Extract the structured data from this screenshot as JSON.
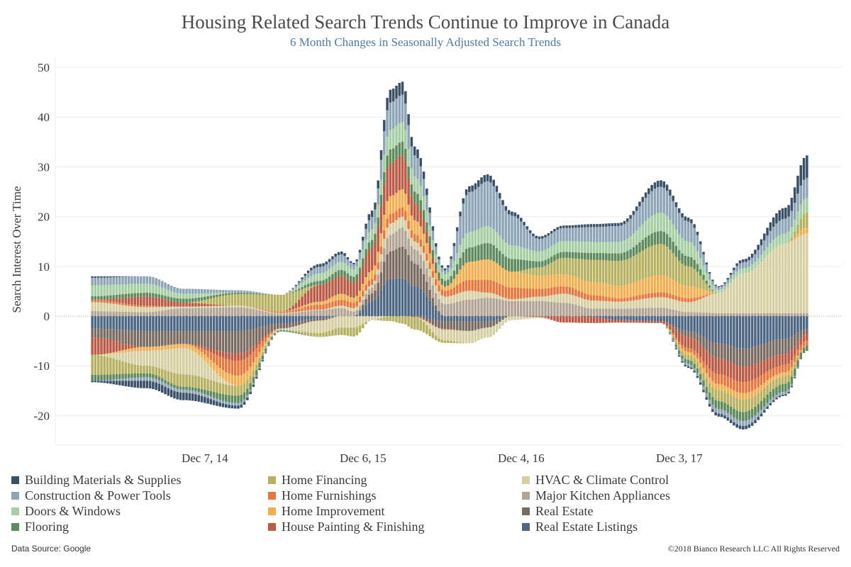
{
  "header": {
    "title": "Housing Related Search Trends Continue to Improve in Canada",
    "subtitle": "6 Month Changes in Seasonally Adjusted Search Trends"
  },
  "footer": {
    "source": "Data Source: Google",
    "copyright": "©2018 Bianco Research LLC  All Rights Reserved"
  },
  "chart_data": {
    "type": "bar",
    "stacked": true,
    "diverging": true,
    "ylabel": "Search Interest Over Time",
    "xlabel": "",
    "ylim": [
      -25,
      52
    ],
    "yticks": [
      -20,
      -10,
      0,
      10,
      20,
      30,
      40,
      50
    ],
    "x_tick_labels": [
      "Dec 7, 14",
      "Dec 6, 15",
      "Dec 4, 16",
      "Dec 3, 17"
    ],
    "x_tick_week_index": [
      37,
      89,
      141,
      193
    ],
    "weeks": 236,
    "grid": "horizontal",
    "legend_position": "bottom",
    "keyframe_weeks": [
      0,
      18,
      30,
      48,
      62,
      75,
      82,
      86,
      92,
      98,
      102,
      106,
      116,
      124,
      130,
      138,
      147,
      155,
      165,
      173,
      187,
      196,
      206,
      214,
      228,
      235
    ],
    "series": [
      {
        "name": "Real Estate Listings",
        "color": "#4d6785",
        "values": [
          0,
          0,
          0,
          0,
          0,
          0,
          0,
          0,
          3,
          7.5,
          7.6,
          6,
          0,
          0,
          0,
          0,
          0,
          0,
          0,
          0,
          0,
          0,
          0,
          0,
          0,
          0
        ]
      },
      {
        "name": "Real Estate",
        "color": "#7a6b62",
        "values": [
          0,
          0,
          0,
          0,
          0,
          0,
          0,
          0,
          1.6,
          5.5,
          6.4,
          4.6,
          0,
          0,
          0,
          0,
          0,
          0,
          0,
          0,
          0,
          0,
          0,
          0,
          0,
          0
        ]
      },
      {
        "name": "Major Kitchen Appliances",
        "color": "#b2a495",
        "values": [
          1,
          0.8,
          1.6,
          1.8,
          0.5,
          1.2,
          1.6,
          0.9,
          1.1,
          3.3,
          3.8,
          2.8,
          2.4,
          3.3,
          3.7,
          3,
          3,
          2.7,
          1.5,
          1.5,
          1.7,
          0.8,
          0.6,
          0.6,
          0.6,
          0.6
        ]
      },
      {
        "name": "HVAC & Climate Control",
        "color": "#d6cfa3",
        "values": [
          1.8,
          1,
          0.3,
          0.3,
          0.1,
          0.1,
          0.5,
          0.7,
          0.6,
          2.3,
          2.2,
          1.6,
          1.5,
          1.8,
          1,
          0.4,
          0.9,
          1.8,
          1.6,
          1.4,
          2.1,
          2,
          4,
          8,
          14,
          16
        ]
      },
      {
        "name": "Home Furnishings",
        "color": "#e8773d",
        "values": [
          0.5,
          0.3,
          0,
          0,
          0.3,
          1,
          1.2,
          1.1,
          1.2,
          1.9,
          1.9,
          1.5,
          1.2,
          2.2,
          2.6,
          2.3,
          1.6,
          1.5,
          1.1,
          0.7,
          1,
          0.8,
          0,
          0,
          0,
          0
        ]
      },
      {
        "name": "Home Improvement",
        "color": "#f4ae4e",
        "values": [
          0,
          0,
          0,
          0,
          0,
          0.6,
          1.2,
          1,
          1.7,
          3.6,
          3.6,
          2.8,
          0.8,
          3.6,
          4.1,
          3.2,
          2.6,
          2.4,
          2.6,
          2.5,
          3.4,
          2.4,
          0,
          0,
          0,
          1.2
        ]
      },
      {
        "name": "House Painting & Finishing",
        "color": "#bc5a44",
        "values": [
          0,
          1.8,
          0.8,
          0,
          0,
          3.4,
          3.5,
          3,
          4.6,
          6.6,
          6.8,
          3.4,
          0,
          0,
          0,
          0,
          0,
          0,
          0,
          0,
          0,
          0,
          0,
          0,
          0,
          0
        ]
      },
      {
        "name": "Home Financing",
        "color": "#b5b160",
        "values": [
          0,
          0,
          0,
          2.3,
          3.4,
          0,
          0,
          0,
          0,
          0,
          0,
          0,
          0,
          0,
          0,
          0,
          1.7,
          3.3,
          4.5,
          5,
          6.3,
          4,
          0,
          0,
          0,
          3
        ]
      },
      {
        "name": "Flooring",
        "color": "#5e8a5d",
        "values": [
          0.7,
          0.8,
          0.8,
          0.3,
          0,
          0.8,
          1.3,
          1.2,
          1.5,
          2.8,
          2.8,
          2.3,
          1.2,
          2.9,
          3.3,
          2.6,
          1.2,
          1.2,
          1.4,
          1.5,
          2.6,
          2,
          0,
          0,
          0,
          0
        ]
      },
      {
        "name": "Doors & Windows",
        "color": "#a5cfa2",
        "values": [
          2.2,
          1.8,
          1,
          0,
          0,
          1.5,
          1.6,
          1.5,
          2.1,
          3.9,
          3.9,
          3.1,
          1.3,
          3.1,
          3.4,
          2.7,
          2,
          2.2,
          2.2,
          2.3,
          3.7,
          3,
          0.7,
          1,
          2,
          3
        ]
      },
      {
        "name": "Construction & Power Tools",
        "color": "#8ea4b7",
        "values": [
          1.5,
          1.5,
          1,
          0.5,
          0,
          1.3,
          1.5,
          1,
          2.5,
          5.5,
          5.5,
          4.2,
          0.8,
          8,
          9,
          6,
          2.5,
          2.6,
          3,
          3.2,
          5.2,
          4,
          0.5,
          1.2,
          3,
          4
        ]
      },
      {
        "name": "Building Materials & Supplies",
        "color": "#3a5068",
        "values": [
          0.3,
          0,
          0,
          0,
          0,
          0.6,
          0.6,
          0.3,
          1.3,
          2.6,
          2.6,
          1.8,
          0.4,
          1.2,
          1.4,
          0.8,
          0.5,
          0.5,
          0.6,
          0.6,
          1.3,
          0.8,
          0.2,
          0.6,
          2.2,
          4.5
        ]
      }
    ],
    "negative_series": [
      {
        "name": "Real Estate Listings",
        "color": "#4d6785",
        "values": [
          -2.5,
          -3,
          -3,
          -3,
          -1.5,
          -0.4,
          0,
          0,
          0,
          0,
          0,
          0,
          -1,
          -1,
          -1,
          0,
          0,
          0,
          -0.2,
          -0.8,
          -1,
          -3,
          -5.5,
          -6.5,
          -4.6,
          -2.6
        ]
      },
      {
        "name": "Real Estate",
        "color": "#7a6b62",
        "values": [
          -1.8,
          -3.2,
          -2.6,
          -4.5,
          -1,
          -0.5,
          0,
          0,
          0,
          0,
          0,
          0,
          -1.5,
          -2,
          -1.3,
          0,
          0,
          0,
          0,
          0,
          0,
          -1.2,
          -3,
          -3.6,
          -3,
          -1
        ]
      },
      {
        "name": "House Painting & Finishing",
        "color": "#bc5a44",
        "values": [
          -3.5,
          0,
          0,
          -1.5,
          0,
          0,
          0,
          0,
          0,
          0,
          0,
          -0.2,
          -0.2,
          0,
          0,
          0,
          -0.2,
          -1.3,
          -1.2,
          -0.5,
          -0.4,
          -2.2,
          -3.2,
          -3.2,
          -2.2,
          -1.3
        ]
      },
      {
        "name": "Home Furnishings",
        "color": "#e8773d",
        "values": [
          0,
          0,
          0,
          -3,
          0,
          0,
          0,
          0,
          0,
          0,
          0,
          0,
          0,
          0,
          0,
          0,
          0,
          0,
          0,
          0,
          0,
          -0.8,
          -2,
          -2.2,
          -1.5,
          -1
        ]
      },
      {
        "name": "Home Improvement",
        "color": "#f4ae4e",
        "values": [
          0,
          -0.8,
          -0.9,
          -2,
          0,
          0,
          0,
          0,
          0,
          0,
          0,
          0,
          0,
          0,
          0,
          0,
          0,
          0,
          0,
          0,
          0,
          -0.6,
          -1.2,
          -1.3,
          -0.8,
          0
        ]
      },
      {
        "name": "HVAC & Climate Control",
        "color": "#d6cfa3",
        "values": [
          0,
          -3,
          -5.2,
          0,
          -0.3,
          -2.5,
          -2.3,
          -2.3,
          -0.8,
          0,
          0,
          0,
          -2.2,
          -2.5,
          -2,
          -0.8,
          -0.2,
          0,
          0,
          0,
          0,
          0,
          0,
          0,
          0,
          0
        ]
      },
      {
        "name": "Home Financing",
        "color": "#b5b160",
        "values": [
          -4,
          -1.5,
          -2.5,
          -2,
          0,
          -0.8,
          -1.5,
          -1.8,
          0,
          -1,
          -1.5,
          -2.5,
          -0.5,
          0,
          0,
          0,
          0,
          0,
          0,
          0,
          0,
          -1,
          -2.2,
          -2.5,
          -1.5,
          0
        ]
      },
      {
        "name": "Flooring",
        "color": "#5e8a5d",
        "values": [
          -1.2,
          -0.8,
          -0.6,
          -1.5,
          -0.3,
          0,
          0,
          0,
          0,
          0,
          0,
          0,
          0,
          0,
          0,
          0,
          0,
          0,
          0,
          0,
          0,
          -0.8,
          -1.6,
          -1.8,
          -1.6,
          -1.1
        ]
      },
      {
        "name": "Construction & Power Tools",
        "color": "#8ea4b7",
        "values": [
          0,
          -0.7,
          -0.6,
          -0.5,
          0,
          0,
          0,
          0,
          0,
          0,
          0,
          0,
          0,
          0,
          0,
          0,
          0,
          0,
          0,
          0,
          0,
          -0.5,
          -0.9,
          -1,
          -0.5,
          0
        ]
      },
      {
        "name": "Building Materials & Supplies",
        "color": "#3a5068",
        "values": [
          -0.3,
          -1.5,
          -1.5,
          -0.6,
          0,
          0,
          0,
          0,
          0,
          0,
          0,
          0,
          0,
          0,
          0,
          0,
          0,
          0,
          0,
          0,
          0,
          -0.3,
          -0.6,
          -0.7,
          -0.3,
          0
        ]
      }
    ],
    "legend": [
      {
        "label": "Building Materials & Supplies",
        "color": "#3a5068"
      },
      {
        "label": "Construction & Power Tools",
        "color": "#8ea4b7"
      },
      {
        "label": "Doors & Windows",
        "color": "#a5cfa2"
      },
      {
        "label": "Flooring",
        "color": "#5e8a5d"
      },
      {
        "label": "Home Financing",
        "color": "#b5b160"
      },
      {
        "label": "Home Furnishings",
        "color": "#e8773d"
      },
      {
        "label": "Home Improvement",
        "color": "#f4ae4e"
      },
      {
        "label": "House Painting & Finishing",
        "color": "#bc5a44"
      },
      {
        "label": "HVAC & Climate Control",
        "color": "#d6cfa3"
      },
      {
        "label": "Major Kitchen Appliances",
        "color": "#b2a495"
      },
      {
        "label": "Real Estate",
        "color": "#7a6b62"
      },
      {
        "label": "Real Estate Listings",
        "color": "#4d6785"
      }
    ]
  }
}
